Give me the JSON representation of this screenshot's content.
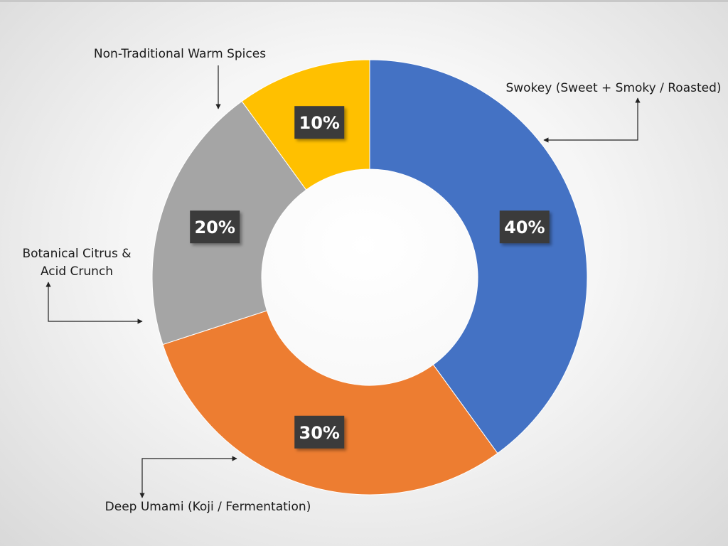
{
  "chart_data": {
    "type": "donut",
    "categories": [
      "Swokey (Sweet + Smoky / Roasted)",
      "Deep Umami (Koji / Fermentation)",
      "Botanical Citrus & Acid Crunch",
      "Non-Traditional Warm Spices"
    ],
    "values": [
      40,
      30,
      20,
      10
    ],
    "value_labels": [
      "40%",
      "30%",
      "20%",
      "10%"
    ],
    "colors": [
      "#4472c4",
      "#ed7d31",
      "#a5a5a5",
      "#ffc000"
    ]
  }
}
